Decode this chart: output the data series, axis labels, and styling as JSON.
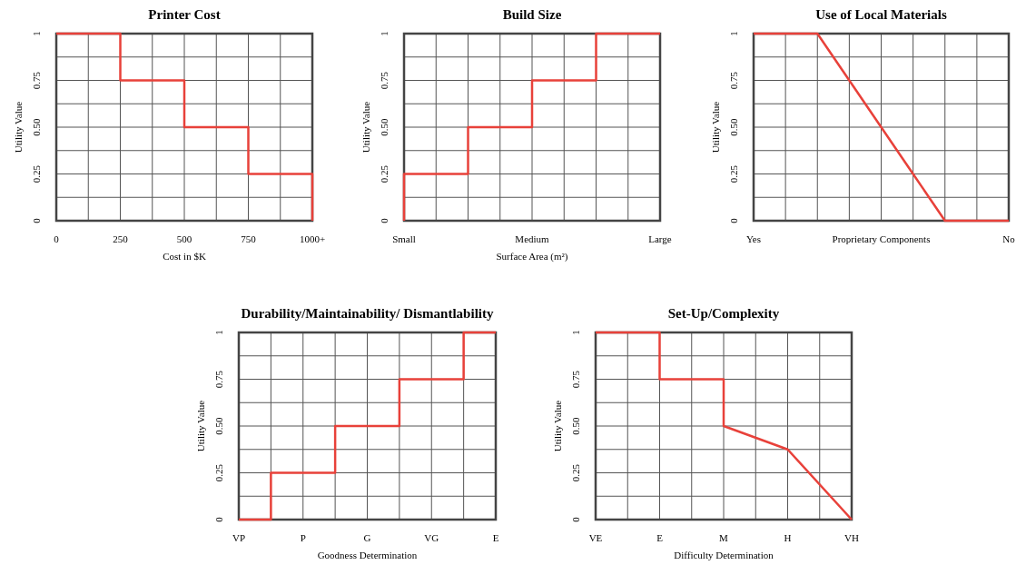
{
  "chart_data": [
    {
      "type": "line",
      "title": "Printer Cost",
      "xlabel": "Cost in $K",
      "ylabel": "Utility Value",
      "grid": true,
      "xlim": [
        0,
        1000
      ],
      "ylim": [
        0,
        1
      ],
      "xticks": [
        0,
        {
          "value": 125,
          "label": null
        },
        250,
        {
          "value": 375,
          "label": null
        },
        500,
        {
          "value": 625,
          "label": null
        },
        750,
        {
          "value": 875,
          "label": null
        },
        {
          "value": 1000,
          "label": "1000+"
        }
      ],
      "yticks": [
        0,
        {
          "value": 0.125,
          "label": null
        },
        0.25,
        {
          "value": 0.375,
          "label": null
        },
        {
          "value": 0.5,
          "label": "0.50"
        },
        {
          "value": 0.625,
          "label": null
        },
        0.75,
        {
          "value": 0.875,
          "label": null
        },
        1
      ],
      "series": [
        {
          "color": "#e8413a",
          "x": [
            0,
            250,
            250,
            500,
            500,
            750,
            750,
            1000,
            1000
          ],
          "values": [
            1,
            1,
            0.75,
            0.75,
            0.5,
            0.5,
            0.25,
            0.25,
            0
          ]
        }
      ]
    },
    {
      "type": "step",
      "title": "Build Size",
      "xlabel": "Surface Area (m²)",
      "ylabel": "Utility Value",
      "grid": true,
      "ylim": [
        0,
        1
      ],
      "categories": [
        "Small",
        null,
        null,
        null,
        "Medium",
        null,
        null,
        null,
        "Large"
      ],
      "yticks": [
        0,
        {
          "value": 0.125,
          "label": null
        },
        0.25,
        {
          "value": 0.375,
          "label": null
        },
        {
          "value": 0.5,
          "label": "0.50"
        },
        {
          "value": 0.625,
          "label": null
        },
        0.75,
        {
          "value": 0.875,
          "label": null
        },
        1
      ],
      "series": [
        {
          "color": "#e8413a",
          "values": [
            0,
            0.25,
            0.25,
            0.5,
            0.5,
            0.75,
            0.75,
            1,
            1
          ]
        }
      ]
    },
    {
      "type": "line",
      "title": "Use of Local Materials",
      "ylabel": "Utility Value",
      "grid": true,
      "ylim": [
        0,
        1
      ],
      "categories": [
        "Yes",
        null,
        null,
        null,
        "Proprietary Components",
        null,
        null,
        null,
        "No"
      ],
      "yticks": [
        0,
        {
          "value": 0.125,
          "label": null
        },
        0.25,
        {
          "value": 0.375,
          "label": null
        },
        {
          "value": 0.5,
          "label": "0.50"
        },
        {
          "value": 0.625,
          "label": null
        },
        0.75,
        {
          "value": 0.875,
          "label": null
        },
        1
      ],
      "series": [
        {
          "color": "#e8413a",
          "values": [
            1,
            1,
            1,
            0.75,
            0.5,
            0.25,
            0,
            0,
            0
          ]
        }
      ]
    },
    {
      "type": "step",
      "title": "Durability/Maintainability/ Dismantlability",
      "xlabel": "Goodness Determination",
      "ylabel": "Utility Value",
      "grid": true,
      "ylim": [
        0,
        1
      ],
      "categories": [
        "VP",
        null,
        "P",
        null,
        "G",
        null,
        "VG",
        null,
        "E"
      ],
      "yticks": [
        0,
        {
          "value": 0.125,
          "label": null
        },
        0.25,
        {
          "value": 0.375,
          "label": null
        },
        {
          "value": 0.5,
          "label": "0.50"
        },
        {
          "value": 0.625,
          "label": null
        },
        0.75,
        {
          "value": 0.875,
          "label": null
        },
        1
      ],
      "series": [
        {
          "color": "#e8413a",
          "values": [
            0,
            0,
            0.25,
            0.25,
            0.5,
            0.5,
            0.75,
            0.75,
            1
          ]
        }
      ]
    },
    {
      "type": "line",
      "title": "Set-Up/Complexity",
      "xlabel": "Difficulty Determination",
      "ylabel": "Utility Value",
      "grid": true,
      "ylim": [
        0,
        1
      ],
      "categories": [
        "VE",
        null,
        "E",
        null,
        "M",
        null,
        "H",
        null,
        "VH"
      ],
      "yticks": [
        0,
        {
          "value": 0.125,
          "label": null
        },
        0.25,
        {
          "value": 0.375,
          "label": null
        },
        {
          "value": 0.5,
          "label": "0.50"
        },
        {
          "value": 0.625,
          "label": null
        },
        0.75,
        {
          "value": 0.875,
          "label": null
        },
        1
      ],
      "series": [
        {
          "color": "#e8413a",
          "x": [
            "VE",
            "E",
            "E",
            "M",
            "M",
            "H",
            "VH"
          ],
          "values": [
            1,
            1,
            0.75,
            0.75,
            0.5,
            0.375,
            0
          ]
        }
      ]
    }
  ]
}
